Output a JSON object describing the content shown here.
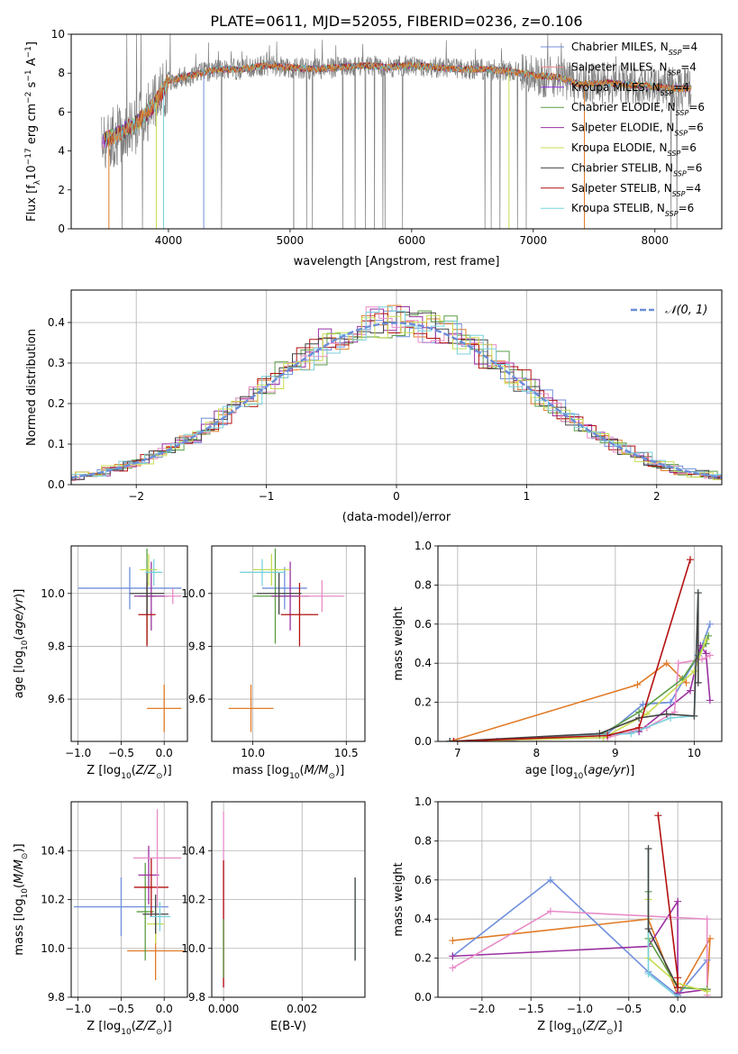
{
  "figure_title": "PLATE=0611, MJD=52055, FIBERID=0236, z=0.106",
  "colors": {
    "chabrier_miles": "#6f8fdc",
    "salpeter_miles": "#f08c8c",
    "kroupa_miles": "#8a2be2",
    "chabrier_elodie": "#5a9e44",
    "salpeter_elodie": "#9b30a0",
    "kroupa_elodie": "#c8dc50",
    "chabrier_stelib": "#444444",
    "salpeter_stelib": "#b31010",
    "kroupa_stelib": "#78d2dc",
    "data_gray": "#808080",
    "model_orange": "#e07b28",
    "pink": "#e88cc8",
    "normal_dashed": "#6a8ed8"
  },
  "chart_data": [
    {
      "id": "spectrum",
      "type": "line",
      "xlabel": "wavelength [Angstrom, rest frame]",
      "ylabel_parts": [
        "Flux [f",
        "λ",
        "10",
        "−17",
        " erg cm",
        "−2",
        " s",
        "−1",
        " A",
        "−1",
        "]"
      ],
      "xlim": [
        3200,
        8550
      ],
      "ylim": [
        0,
        10
      ],
      "xticks": [
        4000,
        5000,
        6000,
        7000,
        8000
      ],
      "yticks": [
        0,
        2,
        4,
        6,
        8,
        10
      ],
      "continuum": {
        "x": [
          3450,
          3600,
          3750,
          3900,
          4000,
          4200,
          4400,
          4600,
          4800,
          5000,
          5200,
          5400,
          5600,
          5800,
          6000,
          6200,
          6400,
          6600,
          6800,
          7000,
          7200,
          7400,
          7600,
          7800,
          8000,
          8200,
          8300
        ],
        "y": [
          4.5,
          4.9,
          5.5,
          6.5,
          7.6,
          7.9,
          8.2,
          8.2,
          8.4,
          8.3,
          8.2,
          8.3,
          8.4,
          8.3,
          8.4,
          8.3,
          8.2,
          8.2,
          8.1,
          7.9,
          7.8,
          7.4,
          7.5,
          7.4,
          7.3,
          7.2,
          7.2
        ]
      },
      "legend": [
        {
          "label": "Chabrier MILES, N",
          "sub": "SSP",
          "suffix": "=4",
          "color": "#6f8fdc"
        },
        {
          "label": "Salpeter MILES, N",
          "sub": "SSP",
          "suffix": "=4",
          "color": "#f08c8c"
        },
        {
          "label": "Kroupa MILES, N",
          "sub": "SSP",
          "suffix": "=4",
          "color": "#8a2be2"
        },
        {
          "label": "Chabrier ELODIE, N",
          "sub": "SSP",
          "suffix": "=6",
          "color": "#5a9e44"
        },
        {
          "label": "Salpeter ELODIE, N",
          "sub": "SSP",
          "suffix": "=6",
          "color": "#9b30a0"
        },
        {
          "label": "Kroupa ELODIE, N",
          "sub": "SSP",
          "suffix": "=6",
          "color": "#c8dc50"
        },
        {
          "label": "Chabrier STELIB, N",
          "sub": "SSP",
          "suffix": "=6",
          "color": "#444444"
        },
        {
          "label": "Salpeter STELIB, N",
          "sub": "SSP",
          "suffix": "=4",
          "color": "#b31010"
        },
        {
          "label": "Kroupa STELIB, N",
          "sub": "SSP",
          "suffix": "=6",
          "color": "#78d2dc"
        }
      ]
    },
    {
      "id": "residuals",
      "type": "histogram",
      "xlabel": "(data-model)/error",
      "ylabel": "Normed distribution",
      "xlim": [
        -2.5,
        2.5
      ],
      "ylim": [
        0,
        0.48
      ],
      "xticks": [
        -2,
        -1,
        0,
        1,
        2
      ],
      "yticks": [
        0.0,
        0.1,
        0.2,
        0.3,
        0.4
      ],
      "grid": true,
      "legend": {
        "label": "𝒩(0, 1)",
        "position": "top-right"
      },
      "normal_curve": {
        "mean": 0,
        "sd": 1
      }
    },
    {
      "id": "age_vs_Z",
      "type": "scatter",
      "xlabel": "Z [log10(Z/Z⊙)]",
      "ylabel": "age  [log10(age/yr)]",
      "xlim": [
        -1.08,
        0.27
      ],
      "ylim": [
        9.44,
        10.18
      ],
      "xticks": [
        -1.0,
        -0.5,
        0.0
      ],
      "yticks": [
        9.6,
        9.8,
        10.0
      ],
      "grid": true,
      "points": [
        {
          "x": -0.4,
          "y": 10.02,
          "xerr": 0.6,
          "yerr": 0.08,
          "color": "#6f8fdc"
        },
        {
          "x": 0.0,
          "y": 9.565,
          "xerr": 0.2,
          "yerr": 0.09,
          "color": "#e07b28"
        },
        {
          "x": -0.2,
          "y": 9.99,
          "xerr": 0.1,
          "yerr": 0.18,
          "color": "#5a9e44"
        },
        {
          "x": -0.15,
          "y": 9.99,
          "xerr": 0.2,
          "yerr": 0.13,
          "color": "#9b30a0"
        },
        {
          "x": -0.2,
          "y": 9.92,
          "xerr": 0.1,
          "yerr": 0.12,
          "color": "#b31010"
        },
        {
          "x": -0.18,
          "y": 10.09,
          "xerr": 0.1,
          "yerr": 0.06,
          "color": "#c8dc50"
        },
        {
          "x": -0.2,
          "y": 10.0,
          "xerr": 0.2,
          "yerr": 0.08,
          "color": "#444444"
        },
        {
          "x": -0.12,
          "y": 10.08,
          "xerr": 0.1,
          "yerr": 0.05,
          "color": "#78d2dc"
        },
        {
          "x": 0.1,
          "y": 9.99,
          "xerr": 0.1,
          "yerr": 0.03,
          "color": "#e88cc8"
        }
      ]
    },
    {
      "id": "age_vs_mass",
      "type": "scatter",
      "xlabel": "mass [log10(M/M⊙)]",
      "ylabel": "",
      "xlim": [
        9.78,
        10.6
      ],
      "ylim": [
        9.44,
        10.18
      ],
      "xticks": [
        10.0,
        10.5
      ],
      "yticks": [
        9.6,
        9.8,
        10.0
      ],
      "grid": true,
      "points": [
        {
          "x": 10.17,
          "y": 10.02,
          "xerr": 0.12,
          "yerr": 0.08,
          "color": "#6f8fdc"
        },
        {
          "x": 9.99,
          "y": 9.565,
          "xerr": 0.12,
          "yerr": 0.09,
          "color": "#e07b28"
        },
        {
          "x": 10.12,
          "y": 9.99,
          "xerr": 0.12,
          "yerr": 0.18,
          "color": "#5a9e44"
        },
        {
          "x": 10.2,
          "y": 9.99,
          "xerr": 0.1,
          "yerr": 0.13,
          "color": "#9b30a0"
        },
        {
          "x": 10.25,
          "y": 9.92,
          "xerr": 0.1,
          "yerr": 0.12,
          "color": "#b31010"
        },
        {
          "x": 10.1,
          "y": 10.09,
          "xerr": 0.1,
          "yerr": 0.06,
          "color": "#c8dc50"
        },
        {
          "x": 10.14,
          "y": 10.0,
          "xerr": 0.12,
          "yerr": 0.08,
          "color": "#444444"
        },
        {
          "x": 10.05,
          "y": 10.08,
          "xerr": 0.12,
          "yerr": 0.05,
          "color": "#78d2dc"
        },
        {
          "x": 10.37,
          "y": 9.99,
          "xerr": 0.12,
          "yerr": 0.06,
          "color": "#e88cc8"
        }
      ]
    },
    {
      "id": "mass_weight_vs_age",
      "type": "line",
      "xlabel": "age  [log10(age/yr)]",
      "ylabel": "mass weight",
      "xlim": [
        6.75,
        10.35
      ],
      "ylim": [
        0,
        1
      ],
      "xticks": [
        7,
        8,
        9,
        10
      ],
      "yticks": [
        0.0,
        0.2,
        0.4,
        0.6,
        0.8,
        1.0
      ],
      "grid": true,
      "series": [
        {
          "color": "#e07b28",
          "x": [
            6.9,
            9.28,
            9.65,
            9.9
          ],
          "y": [
            0.0,
            0.29,
            0.4,
            0.3
          ]
        },
        {
          "color": "#6f8fdc",
          "x": [
            6.9,
            7.5,
            8.9,
            9.35,
            9.7,
            10.05,
            10.2
          ],
          "y": [
            0.0,
            0.0,
            0.04,
            0.19,
            0.2,
            0.44,
            0.6
          ]
        },
        {
          "color": "#9b30a0",
          "x": [
            6.95,
            8.85,
            9.3,
            9.95,
            10.08,
            10.15,
            10.2
          ],
          "y": [
            0.0,
            0.03,
            0.05,
            0.26,
            0.49,
            0.45,
            0.21
          ]
        },
        {
          "color": "#e88cc8",
          "x": [
            6.95,
            8.9,
            9.4,
            9.75,
            9.8,
            10.1,
            10.2
          ],
          "y": [
            0.0,
            0.02,
            0.07,
            0.15,
            0.4,
            0.42,
            0.44
          ]
        },
        {
          "color": "#5a9e44",
          "x": [
            6.9,
            8.8,
            9.3,
            9.85,
            10.15,
            10.18
          ],
          "y": [
            0.0,
            0.03,
            0.15,
            0.32,
            0.5,
            0.54
          ]
        },
        {
          "color": "#c8dc50",
          "x": [
            6.95,
            8.85,
            9.4,
            10.0,
            10.15
          ],
          "y": [
            0.0,
            0.02,
            0.14,
            0.36,
            0.52
          ]
        },
        {
          "color": "#78d2dc",
          "x": [
            6.9,
            9.2,
            9.7,
            10.0,
            10.05
          ],
          "y": [
            0.0,
            0.04,
            0.12,
            0.13,
            0.76
          ]
        },
        {
          "color": "#444444",
          "x": [
            6.9,
            8.8,
            9.3,
            9.65,
            10.0,
            10.05,
            10.05
          ],
          "y": [
            0.0,
            0.04,
            0.12,
            0.14,
            0.13,
            0.76,
            0.3
          ]
        },
        {
          "color": "#b31010",
          "x": [
            6.95,
            8.9,
            9.3,
            9.95
          ],
          "y": [
            0.0,
            0.03,
            0.07,
            0.93
          ]
        }
      ]
    },
    {
      "id": "mass_vs_Z",
      "type": "scatter",
      "xlabel": "Z [log10(Z/Z⊙)]",
      "ylabel": "mass [log10(M/M⊙)]",
      "xlim": [
        -1.08,
        0.27
      ],
      "ylim": [
        9.8,
        10.6
      ],
      "xticks": [
        -1.0,
        -0.5,
        0.0
      ],
      "yticks": [
        9.8,
        10.0,
        10.2,
        10.4
      ],
      "grid": true,
      "points": [
        {
          "x": -0.5,
          "y": 10.17,
          "xerr": 0.55,
          "yerr": 0.12,
          "color": "#6f8fdc"
        },
        {
          "x": -0.1,
          "y": 9.99,
          "xerr": 0.33,
          "yerr": 0.12,
          "color": "#e07b28"
        },
        {
          "x": -0.22,
          "y": 10.15,
          "xerr": 0.1,
          "yerr": 0.2,
          "color": "#5a9e44"
        },
        {
          "x": -0.18,
          "y": 10.3,
          "xerr": 0.12,
          "yerr": 0.12,
          "color": "#9b30a0"
        },
        {
          "x": -0.15,
          "y": 10.25,
          "xerr": 0.2,
          "yerr": 0.12,
          "color": "#b31010"
        },
        {
          "x": -0.1,
          "y": 10.1,
          "xerr": 0.1,
          "yerr": 0.08,
          "color": "#c8dc50"
        },
        {
          "x": -0.1,
          "y": 10.14,
          "xerr": 0.15,
          "yerr": 0.08,
          "color": "#444444"
        },
        {
          "x": -0.05,
          "y": 10.13,
          "xerr": 0.12,
          "yerr": 0.06,
          "color": "#78d2dc"
        },
        {
          "x": -0.08,
          "y": 10.37,
          "xerr": 0.28,
          "yerr": 0.2,
          "color": "#e88cc8"
        }
      ]
    },
    {
      "id": "mass_vs_ebv",
      "type": "scatter",
      "xlabel": "E(B-V)",
      "ylabel": "",
      "xlim": [
        -0.0003,
        0.0036
      ],
      "ylim": [
        9.8,
        10.6
      ],
      "xticks": [
        0.0,
        0.002
      ],
      "yticks": [
        9.8,
        10.0,
        10.2,
        10.4
      ],
      "grid": true,
      "points": [
        {
          "x": 0.0,
          "y": 10.2,
          "yerr": 0.36,
          "color": "#e88cc8"
        },
        {
          "x": 0.0,
          "y": 10.1,
          "yerr": 0.26,
          "color": "#b31010"
        },
        {
          "x": 0.0,
          "y": 10.0,
          "yerr": 0.12,
          "color": "#5a9e44"
        },
        {
          "x": 0.00335,
          "y": 10.12,
          "yerr": 0.17,
          "color": "#78d2dc"
        },
        {
          "x": 0.00335,
          "y": 10.12,
          "yerr": 0.17,
          "color": "#444444"
        }
      ]
    },
    {
      "id": "mass_weight_vs_Z",
      "type": "line",
      "xlabel": "Z [log10(Z/Z⊙)]",
      "ylabel": "mass weight",
      "xlim": [
        -2.45,
        0.45
      ],
      "ylim": [
        0,
        1
      ],
      "xticks": [
        -2.0,
        -1.5,
        -1.0,
        -0.5,
        0.0
      ],
      "yticks": [
        0.0,
        0.2,
        0.4,
        0.6,
        0.8,
        1.0
      ],
      "grid": true,
      "series": [
        {
          "color": "#e07b28",
          "x": [
            -2.3,
            -0.3,
            0.0,
            0.33,
            0.3
          ],
          "y": [
            0.29,
            0.4,
            0.01,
            0.3,
            0.04
          ]
        },
        {
          "color": "#6f8fdc",
          "x": [
            -2.3,
            -1.3,
            -0.3,
            0.0,
            0.3
          ],
          "y": [
            0.21,
            0.6,
            0.13,
            0.01,
            0.19
          ]
        },
        {
          "color": "#9b30a0",
          "x": [
            -2.3,
            -0.3,
            0.0,
            0.0,
            0.3
          ],
          "y": [
            0.21,
            0.26,
            0.49,
            0.02,
            0.04
          ]
        },
        {
          "color": "#e88cc8",
          "x": [
            -2.3,
            -1.3,
            0.3,
            0.3
          ],
          "y": [
            0.15,
            0.44,
            0.4,
            0.01
          ]
        },
        {
          "color": "#5a9e44",
          "x": [
            -0.3,
            -0.3,
            0.0,
            0.3
          ],
          "y": [
            0.54,
            0.3,
            0.05,
            0.04
          ]
        },
        {
          "color": "#c8dc50",
          "x": [
            -0.3,
            -0.3,
            0.0,
            0.3
          ],
          "y": [
            0.5,
            0.2,
            0.07,
            0.03
          ]
        },
        {
          "color": "#78d2dc",
          "x": [
            -0.3,
            -0.3,
            0.0
          ],
          "y": [
            0.76,
            0.12,
            0.0
          ]
        },
        {
          "color": "#444444",
          "x": [
            -0.3,
            -0.3,
            0.0
          ],
          "y": [
            0.76,
            0.35,
            0.05
          ]
        },
        {
          "color": "#b31010",
          "x": [
            -0.2,
            0.0,
            0.0
          ],
          "y": [
            0.93,
            0.1,
            0.05
          ]
        }
      ]
    }
  ]
}
